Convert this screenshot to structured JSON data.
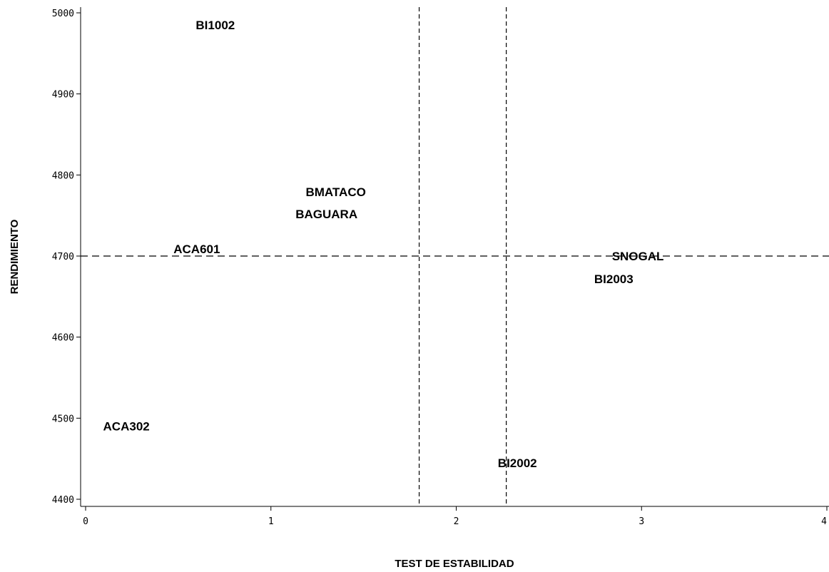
{
  "chart_data": {
    "type": "scatter",
    "xlabel": "TEST DE ESTABILIDAD",
    "ylabel": "RENDIMIENTO",
    "xlim": [
      0,
      4
    ],
    "ylim": [
      4400,
      5000
    ],
    "xticks": [
      "0",
      "1",
      "2",
      "3",
      "4"
    ],
    "yticks": [
      "4400",
      "4500",
      "4600",
      "4700",
      "4800",
      "4900",
      "5000"
    ],
    "reference_lines": {
      "vertical": [
        1.8,
        2.27
      ],
      "horizontal": [
        4700
      ]
    },
    "points": [
      {
        "label": "BI1002",
        "x": 0.7,
        "y": 4985
      },
      {
        "label": "BMATACO",
        "x": 1.35,
        "y": 4779
      },
      {
        "label": "BAGUARA",
        "x": 1.3,
        "y": 4752
      },
      {
        "label": "ACA601",
        "x": 0.6,
        "y": 4709
      },
      {
        "label": "SNOGAL",
        "x": 2.98,
        "y": 4700
      },
      {
        "label": "BI2003",
        "x": 2.85,
        "y": 4672
      },
      {
        "label": "ACA302",
        "x": 0.22,
        "y": 4490
      },
      {
        "label": "BI2002",
        "x": 2.33,
        "y": 4445
      }
    ],
    "grid": false,
    "legend": "none"
  }
}
